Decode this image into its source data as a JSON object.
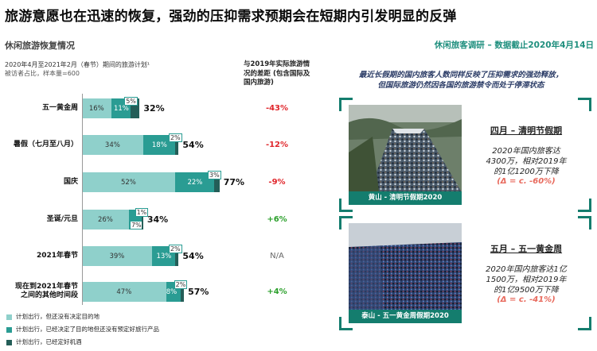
{
  "title": "旅游意愿也在迅速的恢复，强劲的压抑需求预期会在短期内引发明显的反弹",
  "left": {
    "heading": "休闲旅游恢复情况",
    "subtitle_line1": "2020年4月至2021年2月（春节）期间的旅游计划¹",
    "subtitle_line2": "被访者占比，样本量=600",
    "diff_header": "与2019年实际旅游情况的差距 (包含国际及国内旅游)",
    "colors": {
      "undecided": "#8fd0cb",
      "decided": "#2a9c93",
      "booked": "#245e58",
      "negative": "#e0262b",
      "positive": "#2ca02c",
      "neutral": "#666666"
    },
    "rows": [
      {
        "label": "五一黄金周",
        "segments": [
          16,
          11,
          5
        ],
        "seg_labels": [
          "16%",
          "11%",
          "5%"
        ],
        "total": "32%",
        "diff": "-43%",
        "diff_type": "negative"
      },
      {
        "label": "暑假（七月至八月）",
        "segments": [
          34,
          18,
          2
        ],
        "seg_labels": [
          "34%",
          "18%",
          "2%"
        ],
        "total": "54%",
        "diff": "-12%",
        "diff_type": "negative"
      },
      {
        "label": "国庆",
        "segments": [
          52,
          22,
          3
        ],
        "seg_labels": [
          "52%",
          "22%",
          "3%"
        ],
        "total": "77%",
        "diff": "-9%",
        "diff_type": "negative"
      },
      {
        "label": "圣诞/元旦",
        "segments": [
          26,
          7,
          1
        ],
        "seg_labels": [
          "26%",
          "7%",
          "1%"
        ],
        "total": "34%",
        "diff": "+6%",
        "diff_type": "positive"
      },
      {
        "label": "2021年春节",
        "segments": [
          39,
          13,
          2
        ],
        "seg_labels": [
          "39%",
          "13%",
          "2%"
        ],
        "total": "54%",
        "diff": "N/A",
        "diff_type": "neutral"
      },
      {
        "label_line1": "现在到2021年春节",
        "label_line2": "之间的其他时间段",
        "segments": [
          47,
          8,
          2
        ],
        "seg_labels": [
          "47%",
          "8%",
          "2%"
        ],
        "total": "57%",
        "diff": "+4%",
        "diff_type": "positive"
      }
    ],
    "legend": [
      {
        "label": "计划出行，但还没有决定目的地",
        "color_key": "undecided"
      },
      {
        "label": "计划出行，已经决定了目的地但还没有预定好旅行产品",
        "color_key": "decided"
      },
      {
        "label": "计划出行，已经定好机酒",
        "color_key": "booked"
      }
    ]
  },
  "right": {
    "heading": "休闲旅客调研 – 数据截止2020年4月14日",
    "quote_line1": "最近长假期的国内旅客人数同样反映了压抑需求的强劲释放，",
    "quote_line2": "但国际旅游仍然因各国的旅游禁令而处于停滞状态",
    "cards": [
      {
        "photo_caption": "黄山 - 清明节假期2020",
        "stat_title": "四月 – 清明节假期",
        "stat_line1": "2020年国内旅客达",
        "stat_line2": "4300万，相对2019年",
        "stat_line3": "的1亿1200万下降",
        "stat_delta": "(Δ = c. -60%)"
      },
      {
        "photo_caption": "泰山 - 五一黄金周假期2020",
        "stat_title": "五月 – 五一黄金周",
        "stat_line1": "2020年国内旅客达1亿",
        "stat_line2": "1500万，相对2019年",
        "stat_line3": "的1亿9500万下降",
        "stat_delta": "(Δ = c. -41%)"
      }
    ]
  }
}
